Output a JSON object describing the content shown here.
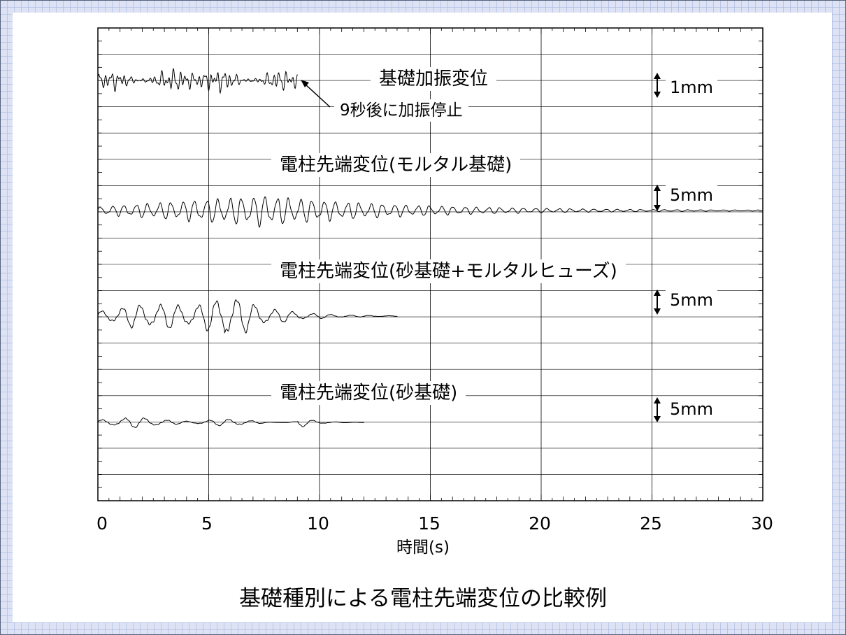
{
  "chart_data": {
    "type": "line",
    "title": "基礎種別による電柱先端変位の比較例",
    "xlabel": "時間(s)",
    "xlim": [
      0,
      30
    ],
    "xticks": [
      "0",
      "5",
      "10",
      "15",
      "20",
      "25",
      "30"
    ],
    "grid": true,
    "annotation": {
      "text": "9秒後に加振停止",
      "x": 9
    },
    "panels": [
      {
        "name": "基礎加振変位",
        "scale_label": "1mm",
        "stop_x": 9,
        "period": 0.28,
        "peak": 2.6
      },
      {
        "name": "電柱先端変位(モルタル基礎)",
        "scale_label": "5mm",
        "stop_x": 30,
        "period": 0.53,
        "peak": 6.9
      },
      {
        "name": "電柱先端変位(砂基礎+モルタルヒューズ)",
        "scale_label": "5mm",
        "stop_x": 13.5,
        "period": 0.86,
        "peak": 11.8
      },
      {
        "name": "電柱先端変位(砂基礎)",
        "scale_label": "5mm",
        "stop_x": 12,
        "period": 0.95,
        "peak": 2.5
      }
    ]
  }
}
